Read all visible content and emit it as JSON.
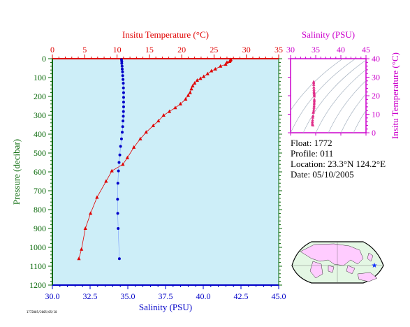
{
  "info": {
    "float": "Float:  1772",
    "profile": "Profile:  011",
    "location": "Location:  23.3°N  124.2°E",
    "date": "Date:  05/10/2005",
    "footnote": "1772005/2005/05/10"
  },
  "colors": {
    "plot_bg": "#cdeef8",
    "temperature": "#e00000",
    "salinity": "#0000c8",
    "inset_axis": "#cc00cc",
    "pressure_axis": "#0a6a0a",
    "land": "#ffccff",
    "ocean": "#e4f7e4"
  },
  "chart_data": [
    {
      "type": "line",
      "title": "",
      "x_top_label": "Insitu Temperature (°C)",
      "x_top_ticks": [
        "0",
        "5",
        "10",
        "15",
        "20",
        "25",
        "30",
        "35"
      ],
      "x_top_range": [
        0,
        35
      ],
      "x_bottom_label": "Salinity (PSU)",
      "x_bottom_ticks": [
        "30.0",
        "32.5",
        "35.0",
        "37.5",
        "40.0",
        "42.5",
        "45.0"
      ],
      "x_bottom_range": [
        30,
        45
      ],
      "ylabel": "Pressure (decibar)",
      "y_ticks": [
        "0",
        "100",
        "200",
        "300",
        "400",
        "500",
        "600",
        "700",
        "800",
        "900",
        "1000",
        "1100",
        "1200"
      ],
      "y_range": [
        0,
        1200
      ],
      "y_inverted": true,
      "grid": false,
      "series": [
        {
          "name": "Insitu Temperature (°C)",
          "marker": "triangle",
          "points": [
            [
              27.6,
              5
            ],
            [
              27.5,
              10
            ],
            [
              27.4,
              15
            ],
            [
              27.0,
              20
            ],
            [
              26.8,
              30
            ],
            [
              26.0,
              40
            ],
            [
              25.2,
              55
            ],
            [
              24.6,
              65
            ],
            [
              24.0,
              80
            ],
            [
              23.4,
              95
            ],
            [
              22.9,
              105
            ],
            [
              22.4,
              115
            ],
            [
              22.0,
              130
            ],
            [
              21.7,
              145
            ],
            [
              21.5,
              160
            ],
            [
              21.3,
              180
            ],
            [
              21.0,
              195
            ],
            [
              20.6,
              215
            ],
            [
              19.8,
              240
            ],
            [
              19.0,
              260
            ],
            [
              18.1,
              280
            ],
            [
              17.2,
              300
            ],
            [
              16.4,
              330
            ],
            [
              15.6,
              355
            ],
            [
              14.5,
              390
            ],
            [
              13.6,
              425
            ],
            [
              12.6,
              470
            ],
            [
              11.6,
              525
            ],
            [
              10.9,
              560
            ],
            [
              9.2,
              595
            ],
            [
              8.3,
              650
            ],
            [
              6.9,
              735
            ],
            [
              5.9,
              820
            ],
            [
              5.1,
              900
            ],
            [
              4.5,
              1010
            ],
            [
              4.1,
              1060
            ]
          ]
        },
        {
          "name": "Salinity (PSU)",
          "marker": "circle",
          "points": [
            [
              34.58,
              5
            ],
            [
              34.6,
              15
            ],
            [
              34.6,
              25
            ],
            [
              34.62,
              40
            ],
            [
              34.63,
              55
            ],
            [
              34.65,
              70
            ],
            [
              34.66,
              90
            ],
            [
              34.68,
              110
            ],
            [
              34.7,
              130
            ],
            [
              34.71,
              155
            ],
            [
              34.72,
              180
            ],
            [
              34.72,
              205
            ],
            [
              34.72,
              230
            ],
            [
              34.72,
              255
            ],
            [
              34.71,
              280
            ],
            [
              34.7,
              305
            ],
            [
              34.68,
              330
            ],
            [
              34.66,
              360
            ],
            [
              34.63,
              390
            ],
            [
              34.58,
              425
            ],
            [
              34.52,
              465
            ],
            [
              34.47,
              510
            ],
            [
              34.42,
              550
            ],
            [
              34.38,
              595
            ],
            [
              34.34,
              660
            ],
            [
              34.32,
              745
            ],
            [
              34.33,
              820
            ],
            [
              34.36,
              900
            ],
            [
              34.44,
              1060
            ]
          ]
        }
      ]
    },
    {
      "type": "scatter",
      "title": "",
      "xlabel": "Salinity (PSU)",
      "ylabel": "Insitu Temperature (°C)",
      "x_ticks": [
        "30",
        "35",
        "40",
        "45"
      ],
      "x_range": [
        30,
        45
      ],
      "y_ticks": [
        "0",
        "10",
        "20",
        "30",
        "40"
      ],
      "y_range": [
        0,
        40
      ],
      "points": [
        [
          34.6,
          27.6
        ],
        [
          34.6,
          27.0
        ],
        [
          34.62,
          26.0
        ],
        [
          34.63,
          24.6
        ],
        [
          34.65,
          23.4
        ],
        [
          34.66,
          22.4
        ],
        [
          34.68,
          21.7
        ],
        [
          34.7,
          21.3
        ],
        [
          34.71,
          20.6
        ],
        [
          34.72,
          19.8
        ],
        [
          34.72,
          18.1
        ],
        [
          34.72,
          17.2
        ],
        [
          34.71,
          16.4
        ],
        [
          34.7,
          15.6
        ],
        [
          34.68,
          14.5
        ],
        [
          34.66,
          13.6
        ],
        [
          34.63,
          12.6
        ],
        [
          34.58,
          11.6
        ],
        [
          34.52,
          10.9
        ],
        [
          34.47,
          9.2
        ],
        [
          34.42,
          8.3
        ],
        [
          34.38,
          6.9
        ],
        [
          34.34,
          5.9
        ],
        [
          34.33,
          5.1
        ],
        [
          34.36,
          4.5
        ],
        [
          34.44,
          4.1
        ]
      ]
    }
  ]
}
